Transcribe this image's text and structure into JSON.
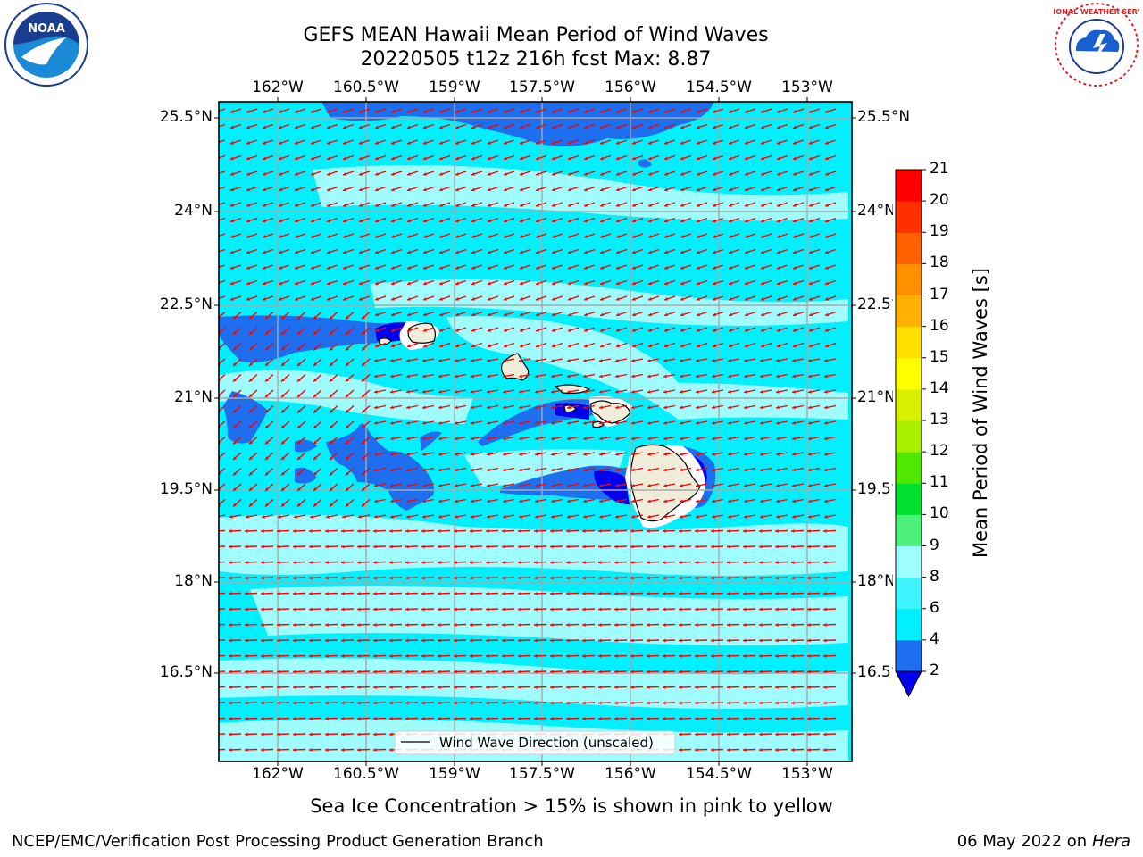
{
  "header": {
    "title_line1": "GEFS MEAN Hawaii Mean Period of Wind Waves",
    "title_line2": "20220505 t12z 216h fcst   Max: 8.87"
  },
  "logos": {
    "left": {
      "icon": "noaa-logo-icon",
      "text": "NOAA"
    },
    "right": {
      "icon": "nws-logo-icon",
      "text": "NATIONAL WEATHER SERVICE"
    }
  },
  "axes": {
    "lon_labels": [
      "162°W",
      "160.5°W",
      "159°W",
      "157.5°W",
      "156°W",
      "154.5°W",
      "153°W"
    ],
    "lat_labels": [
      "25.5°N",
      "24°N",
      "22.5°N",
      "21°N",
      "19.5°N",
      "18°N",
      "16.5°N"
    ]
  },
  "legend": {
    "label": "Wind Wave Direction (unscaled)"
  },
  "colorbar": {
    "title": "Mean Period of Wind Waves [s]",
    "levels": [
      "2",
      "4",
      "6",
      "8",
      "9",
      "10",
      "11",
      "12",
      "13",
      "14",
      "15",
      "16",
      "17",
      "18",
      "19",
      "20",
      "21"
    ],
    "colors": [
      "#1e6ff0",
      "#00f0ff",
      "#40f4ff",
      "#9ffcff",
      "#4cf07a",
      "#00e030",
      "#50e800",
      "#aaee00",
      "#d8f000",
      "#ffff00",
      "#ffe000",
      "#ffb000",
      "#ff9000",
      "#ff6000",
      "#ff3000",
      "#ff0000"
    ],
    "under_color": "#0000ee"
  },
  "map_colors": {
    "ocean_base": "#00f0ff",
    "long_period": "#9ffcff",
    "short_period": "#1e6ff0",
    "very_short": "#0000ee",
    "land": "#efecd9",
    "arrow": "#ff0000",
    "grid": "#a8a8a8"
  },
  "footer": {
    "note": "Sea Ice Concentration > 15% is shown in pink to yellow",
    "credit": "NCEP/EMC/Verification Post Processing Product Generation Branch",
    "date": "06 May 2022 on",
    "host": "Hera"
  }
}
